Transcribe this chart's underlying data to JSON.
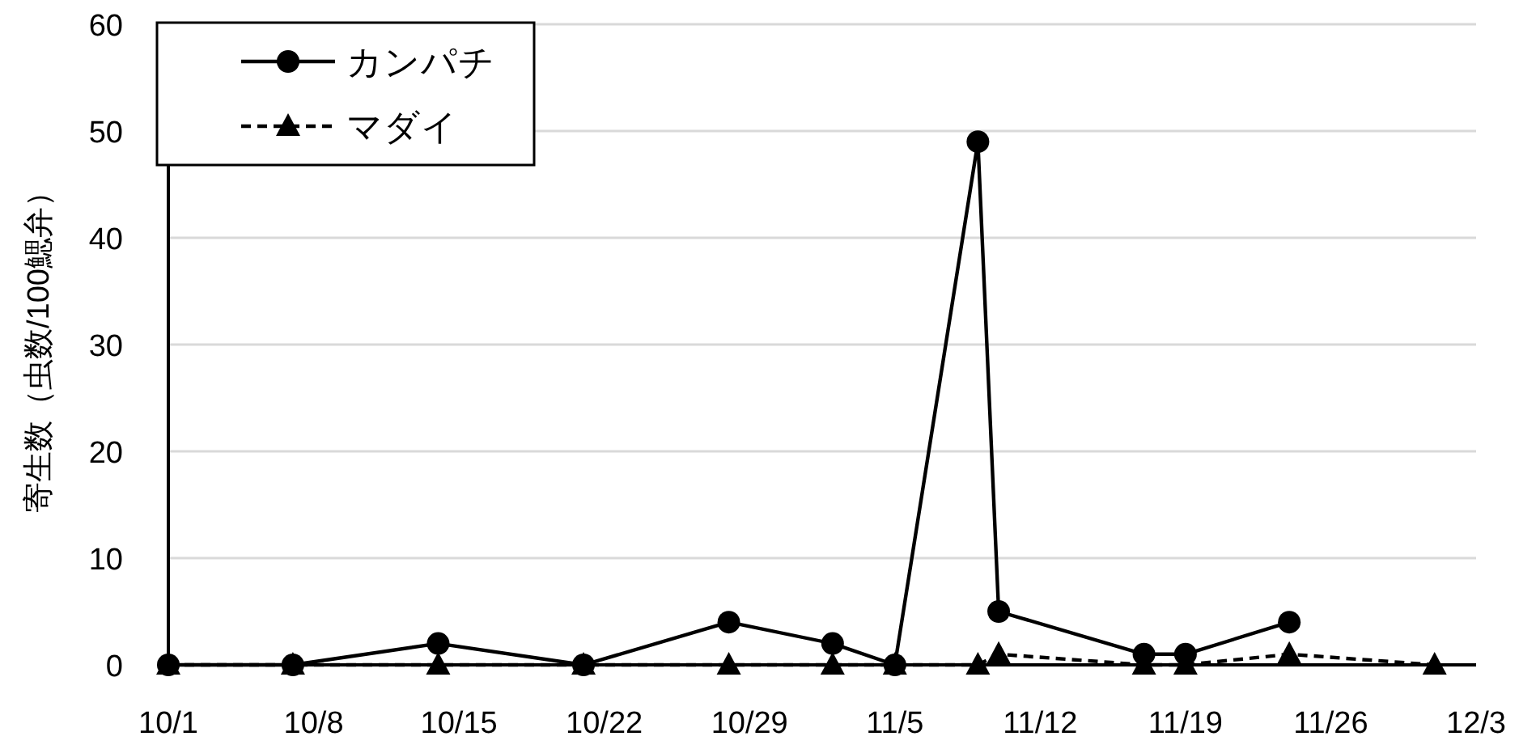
{
  "chart_data": {
    "type": "line",
    "ylabel": "寄生数（虫数/100鰓弁）",
    "x": [
      "--10-01",
      "--10-07",
      "--10-14",
      "--10-21",
      "--10-28",
      "--11-02",
      "--11-05",
      "--11-09",
      "--11-10",
      "--11-17",
      "--11-19",
      "--11-24",
      "--12-01"
    ],
    "series": [
      {
        "name": "カンパチ",
        "color": "#000000",
        "marker": "circle",
        "line_style": "solid",
        "values": [
          0,
          0,
          2,
          0,
          4,
          2,
          0,
          49,
          5,
          1,
          1,
          4,
          null
        ]
      },
      {
        "name": "マダイ",
        "color": "#000000",
        "marker": "triangle",
        "line_style": "dashed",
        "values": [
          0,
          0,
          0,
          0,
          0,
          0,
          0,
          0,
          1,
          0,
          0,
          1,
          0
        ]
      }
    ],
    "xlim": [
      "--10-01",
      "--12-03"
    ],
    "xticks": [
      {
        "value": "--10-01",
        "label": "10/1"
      },
      {
        "value": "--10-08",
        "label": "10/8"
      },
      {
        "value": "--10-15",
        "label": "10/15"
      },
      {
        "value": "--10-22",
        "label": "10/22"
      },
      {
        "value": "--10-29",
        "label": "10/29"
      },
      {
        "value": "--11-05",
        "label": "11/5"
      },
      {
        "value": "--11-12",
        "label": "11/12"
      },
      {
        "value": "--11-19",
        "label": "11/19"
      },
      {
        "value": "--11-26",
        "label": "11/26"
      },
      {
        "value": "--12-03",
        "label": "12/3"
      }
    ],
    "ylim": [
      0,
      60
    ],
    "yticks": [
      0,
      10,
      20,
      30,
      40,
      50,
      60
    ],
    "grid": "y",
    "legend": "top left"
  }
}
